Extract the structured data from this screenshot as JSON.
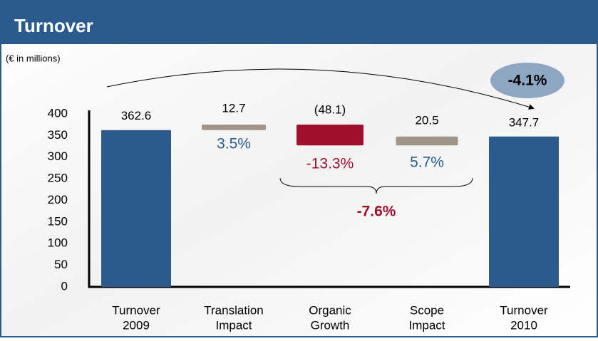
{
  "chart_data": {
    "type": "waterfall",
    "title": "Turnover",
    "subtitle": "(€ in millions)",
    "categories": [
      [
        "Turnover",
        "2009"
      ],
      [
        "Translation",
        "Impact"
      ],
      [
        "Organic",
        "Growth"
      ],
      [
        "Scope",
        "Impact"
      ],
      [
        "Turnover",
        "2010"
      ]
    ],
    "values": [
      362.6,
      12.7,
      -48.1,
      20.5,
      347.7
    ],
    "value_labels": [
      "362.6",
      "12.7",
      "(48.1)",
      "20.5",
      "347.7"
    ],
    "is_total": [
      true,
      false,
      false,
      false,
      true
    ],
    "colors": {
      "total": "#2b5b8c",
      "increase": "#a19589",
      "decrease": "#a0102e"
    },
    "ylim": [
      0,
      400
    ],
    "yticks": [
      0,
      50,
      100,
      150,
      200,
      250,
      300,
      350,
      400
    ],
    "change_labels": [
      "3.5%",
      "-13.3%",
      "5.7%"
    ],
    "group_change": "-7.6%",
    "total_change": "-4.1%"
  }
}
